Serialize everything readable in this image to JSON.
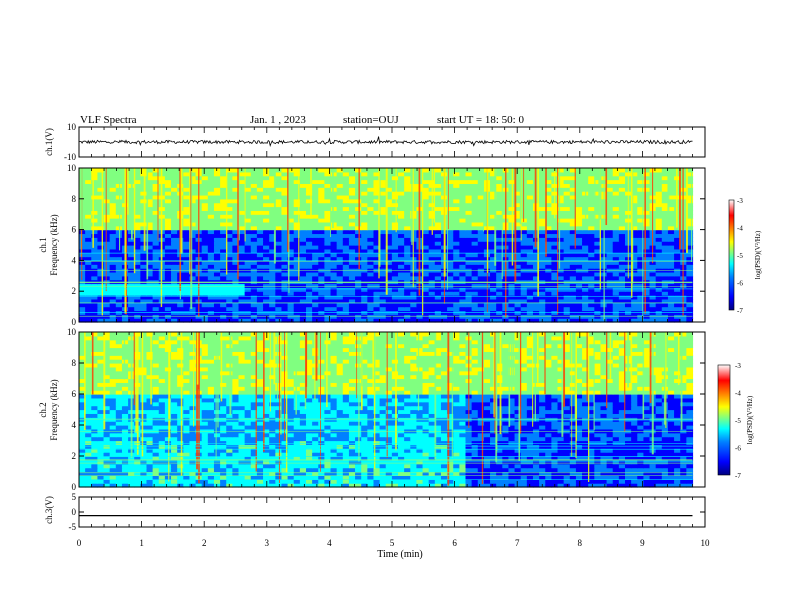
{
  "header": {
    "title": "VLF Spectra",
    "date": "Jan. 1 , 2023",
    "station": "station=OUJ",
    "start": "start UT =  18: 50: 0"
  },
  "chart_data": [
    {
      "type": "line",
      "name": "ch1-waveform",
      "ylabel": "ch.1(V)",
      "ylim": [
        -10,
        10
      ],
      "yticks": [
        "10",
        "-10"
      ],
      "xlim": [
        0,
        10
      ],
      "x": [
        0,
        9.8
      ],
      "y_approx": 0,
      "color": "#000000"
    },
    {
      "type": "heatmap",
      "name": "ch1-spectrogram",
      "ylabel": [
        "ch.1",
        "Frequency (kHz)"
      ],
      "ylim": [
        0,
        10
      ],
      "yticks": [
        "0",
        "2",
        "4",
        "6",
        "8",
        "10"
      ],
      "xlim": [
        0,
        10
      ],
      "data_end_min": 9.8,
      "colorbar": {
        "ticks": [
          "-3",
          "-4",
          "-5",
          "-6",
          "-7"
        ],
        "label": "log(PSD)(V²/Hz)"
      }
    },
    {
      "type": "heatmap",
      "name": "ch2-spectrogram",
      "ylabel": [
        "ch.2",
        "Frequency (kHz)"
      ],
      "ylim": [
        0,
        10
      ],
      "yticks": [
        "0",
        "2",
        "4",
        "6",
        "8",
        "10"
      ],
      "xlim": [
        0,
        10
      ],
      "data_end_min": 9.8,
      "colorbar": {
        "ticks": [
          "-3",
          "-4",
          "-5",
          "-6",
          "-7"
        ],
        "label": "log(PSD)(V²/Hz)"
      }
    },
    {
      "type": "line",
      "name": "ch3-waveform",
      "ylabel": "ch.3(V)",
      "ylim": [
        -5,
        5
      ],
      "yticks": [
        "5",
        "0",
        "-5"
      ],
      "xlim": [
        0,
        10
      ],
      "x": [
        0,
        9.8
      ],
      "y": [
        -1.2,
        -1.2
      ],
      "color": "#000000"
    }
  ],
  "xaxis": {
    "label": "Time (min)",
    "ticks": [
      "0",
      "1",
      "2",
      "3",
      "4",
      "5",
      "6",
      "7",
      "8",
      "9",
      "10"
    ]
  },
  "colors": {
    "cmap": [
      "#00007f",
      "#0000ff",
      "#0080ff",
      "#00ffff",
      "#80ff80",
      "#ffff00",
      "#ff8000",
      "#ff0000",
      "#ffffff"
    ]
  }
}
